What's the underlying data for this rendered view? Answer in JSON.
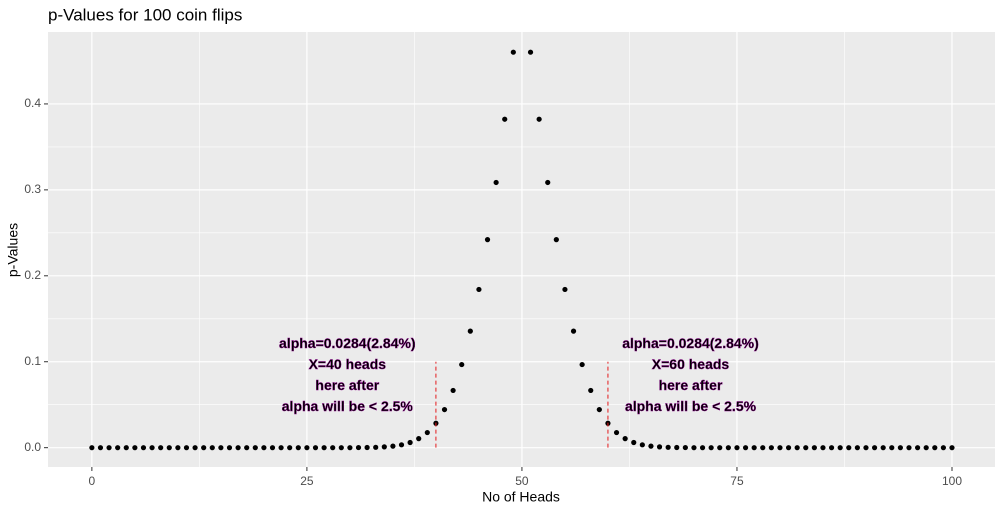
{
  "chart_data": {
    "type": "scatter",
    "title": "p-Values for 100 coin flips",
    "x_label": "No of Heads",
    "y_label": "p-Values",
    "x": [
      0,
      1,
      2,
      3,
      4,
      5,
      6,
      7,
      8,
      9,
      10,
      11,
      12,
      13,
      14,
      15,
      16,
      17,
      18,
      19,
      20,
      21,
      22,
      23,
      24,
      25,
      26,
      27,
      28,
      29,
      30,
      31,
      32,
      33,
      34,
      35,
      36,
      37,
      38,
      39,
      40,
      41,
      42,
      43,
      44,
      45,
      46,
      47,
      48,
      49,
      50,
      51,
      52,
      53,
      54,
      55,
      56,
      57,
      58,
      59,
      60,
      61,
      62,
      63,
      64,
      65,
      66,
      67,
      68,
      69,
      70,
      71,
      72,
      73,
      74,
      75,
      76,
      77,
      78,
      79,
      80,
      81,
      82,
      83,
      84,
      85,
      86,
      87,
      88,
      89,
      90,
      91,
      92,
      93,
      94,
      95,
      96,
      97,
      98,
      99,
      100
    ],
    "values": [
      0,
      0,
      0,
      0,
      0,
      0,
      0,
      0,
      0,
      0,
      0,
      0,
      0,
      0,
      0,
      0,
      0,
      0,
      0,
      0,
      0,
      0,
      0,
      0,
      0,
      0,
      0,
      0,
      0,
      0,
      0,
      0.0001,
      0.0002,
      0.0004,
      0.0009,
      0.0018,
      0.0033,
      0.006,
      0.0105,
      0.0176,
      0.0284,
      0.0443,
      0.0666,
      0.0967,
      0.1356,
      0.1841,
      0.2421,
      0.3086,
      0.3822,
      0.4602,
      null,
      0.4602,
      0.3822,
      0.3086,
      0.2421,
      0.1841,
      0.1356,
      0.0967,
      0.0666,
      0.0443,
      0.0284,
      0.0176,
      0.0105,
      0.006,
      0.0033,
      0.0018,
      0.0009,
      0.0004,
      0.0002,
      0.0001,
      0,
      0,
      0,
      0,
      0,
      0,
      0,
      0,
      0,
      0,
      0,
      0,
      0,
      0,
      0,
      0,
      0,
      0,
      0,
      0,
      0,
      0,
      0,
      0,
      0,
      0,
      0,
      0,
      0,
      0,
      0
    ],
    "color": "#000000",
    "xlim": [
      -5.1,
      105
    ],
    "ylim": [
      -0.0225,
      0.4837
    ],
    "xticks": [
      0,
      25,
      50,
      75,
      100
    ],
    "yticks": [
      0.0,
      0.1,
      0.2,
      0.3,
      0.4
    ],
    "grid": true,
    "vlines": [
      {
        "x": 40,
        "ymin": 0,
        "ymax": 0.1,
        "color": "#e41a1c"
      },
      {
        "x": 60,
        "ymin": 0,
        "ymax": 0.1,
        "color": "#e41a1c"
      }
    ],
    "annotations": [
      {
        "x": 29.7,
        "y": 0.12,
        "lines": [
          "alpha=0.0284(2.84%)",
          "X=40 heads",
          "here after",
          "alpha will be < 2.5%"
        ]
      },
      {
        "x": 69.6,
        "y": 0.12,
        "lines": [
          "alpha=0.0284(2.84%)",
          "X=60 heads",
          "here after",
          "alpha will be < 2.5%"
        ]
      }
    ]
  }
}
